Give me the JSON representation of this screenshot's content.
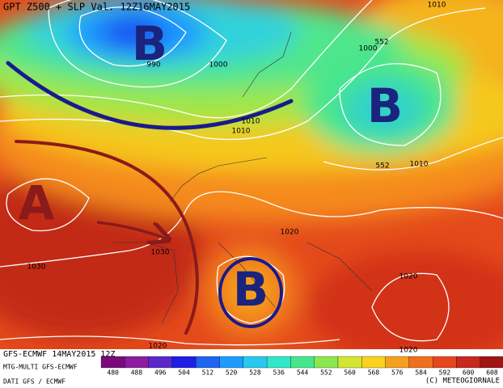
{
  "header": {
    "title": "GPT Z500 + SLP Val. 12Z16MAY2015"
  },
  "systems": [
    {
      "label": "B",
      "color": "#1a237e"
    },
    {
      "label": "B",
      "color": "#1a237e"
    },
    {
      "label": "B",
      "color": "#1a237e"
    },
    {
      "label": "A",
      "color": "#8b1a1a"
    }
  ],
  "contour_labels": [
    "990",
    "1000",
    "1000",
    "1010",
    "552",
    "1010",
    "552",
    "1010",
    "1010",
    "1020",
    "1030",
    "1030",
    "1020",
    "1020",
    "1020"
  ],
  "legend": {
    "ticks": [
      480,
      488,
      496,
      504,
      512,
      520,
      528,
      536,
      544,
      552,
      560,
      568,
      576,
      584,
      592,
      600,
      608
    ],
    "colors": [
      "#7a0a7a",
      "#8c1ca0",
      "#5a28c8",
      "#1e1ee6",
      "#1e64f0",
      "#1e9bff",
      "#28c8f0",
      "#32e6c8",
      "#46e68c",
      "#8ce650",
      "#d2e632",
      "#fad21e",
      "#f5a01e",
      "#f06e1e",
      "#e6461e",
      "#c8281e",
      "#a01414"
    ]
  },
  "footer": {
    "run": "GFS-ECMWF 14MAY2015 12Z",
    "model": "MTG-MULTI GFS-ECMWF",
    "source": "DATI GFS / ECMWF",
    "copyright": "(C) METEOGIORNALE"
  }
}
